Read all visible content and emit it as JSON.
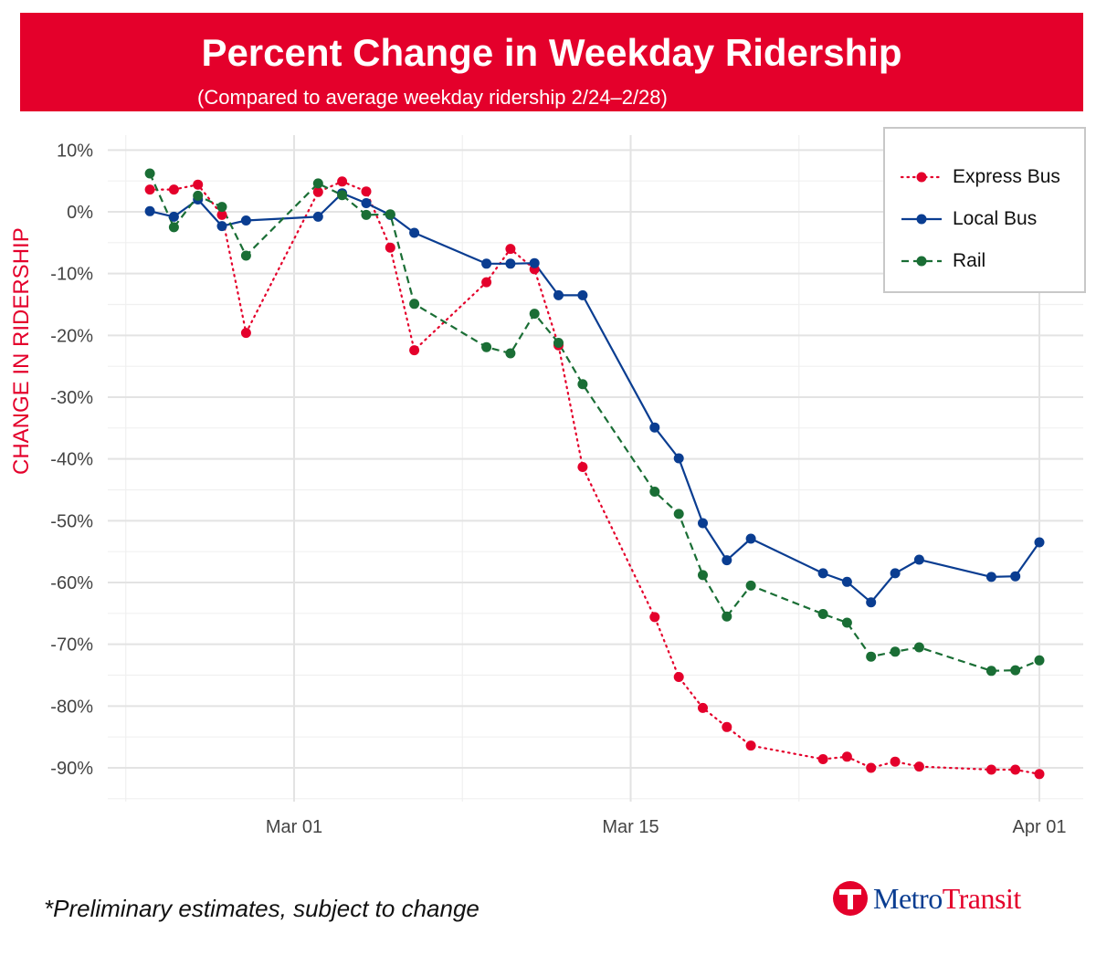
{
  "header": {
    "title": "Percent Change in Weekday Ridership",
    "subtitle": "(Compared to average weekday ridership 2/24–2/28)"
  },
  "footnote": "*Preliminary estimates, subject to change",
  "logo": {
    "part1": "Metro",
    "part2": "Transit",
    "icon": "metro-transit-t-icon"
  },
  "colors": {
    "banner": "#e4002b",
    "express": "#e4002b",
    "local": "#0a3d91",
    "rail": "#1a6e35"
  },
  "chart_data": {
    "type": "line",
    "ylabel": "CHANGE IN RIDERSHIP",
    "ylim": [
      -95,
      10
    ],
    "y_ticks": [
      10,
      0,
      -10,
      -20,
      -30,
      -40,
      -50,
      -60,
      -70,
      -80,
      -90
    ],
    "y_tick_labels": [
      "10%",
      "0%",
      "-10%",
      "-20%",
      "-30%",
      "-40%",
      "-50%",
      "-60%",
      "-70%",
      "-80%",
      "-90%"
    ],
    "x_range": [
      "2020-02-22",
      "2020-04-02"
    ],
    "x_ticks": [
      "2020-03-01",
      "2020-03-15",
      "2020-04-01"
    ],
    "x_tick_labels": [
      "Mar 01",
      "Mar 15",
      "Apr 01"
    ],
    "grid": true,
    "legend_position": "top-right",
    "series": [
      {
        "name": "Express Bus",
        "style": "dotted",
        "x": [
          "2020-02-24",
          "2020-02-25",
          "2020-02-26",
          "2020-02-27",
          "2020-02-28",
          "2020-03-02",
          "2020-03-03",
          "2020-03-04",
          "2020-03-05",
          "2020-03-06",
          "2020-03-09",
          "2020-03-10",
          "2020-03-11",
          "2020-03-12",
          "2020-03-13",
          "2020-03-16",
          "2020-03-17",
          "2020-03-18",
          "2020-03-19",
          "2020-03-20",
          "2020-03-23",
          "2020-03-24",
          "2020-03-25",
          "2020-03-26",
          "2020-03-27",
          "2020-03-30",
          "2020-03-31",
          "2020-04-01"
        ],
        "y": [
          3.6,
          3.6,
          4.4,
          -0.5,
          -19.6,
          3.2,
          4.9,
          3.3,
          -5.8,
          -22.4,
          -11.4,
          -6.0,
          -9.3,
          -21.6,
          -41.3,
          -65.6,
          -75.3,
          -80.3,
          -83.4,
          -86.4,
          -88.6,
          -88.2,
          -90.0,
          -89.0,
          -89.8,
          -90.3,
          -90.3,
          -91.0
        ]
      },
      {
        "name": "Local Bus",
        "style": "solid",
        "x": [
          "2020-02-24",
          "2020-02-25",
          "2020-02-26",
          "2020-02-27",
          "2020-02-28",
          "2020-03-02",
          "2020-03-03",
          "2020-03-04",
          "2020-03-05",
          "2020-03-06",
          "2020-03-09",
          "2020-03-10",
          "2020-03-11",
          "2020-03-12",
          "2020-03-13",
          "2020-03-16",
          "2020-03-17",
          "2020-03-18",
          "2020-03-19",
          "2020-03-20",
          "2020-03-23",
          "2020-03-24",
          "2020-03-25",
          "2020-03-26",
          "2020-03-27",
          "2020-03-30",
          "2020-03-31",
          "2020-04-01"
        ],
        "y": [
          0.1,
          -0.8,
          2.0,
          -2.3,
          -1.4,
          -0.8,
          3.0,
          1.4,
          -0.5,
          -3.4,
          -8.4,
          -8.4,
          -8.3,
          -13.5,
          -13.5,
          -34.9,
          -39.9,
          -50.4,
          -56.4,
          -52.9,
          -58.5,
          -59.9,
          -63.2,
          -58.5,
          -56.3,
          -59.1,
          -59.0,
          -53.5
        ]
      },
      {
        "name": "Rail",
        "style": "dashed",
        "x": [
          "2020-02-24",
          "2020-02-25",
          "2020-02-26",
          "2020-02-27",
          "2020-02-28",
          "2020-03-02",
          "2020-03-03",
          "2020-03-04",
          "2020-03-05",
          "2020-03-06",
          "2020-03-09",
          "2020-03-10",
          "2020-03-11",
          "2020-03-12",
          "2020-03-13",
          "2020-03-16",
          "2020-03-17",
          "2020-03-18",
          "2020-03-19",
          "2020-03-20",
          "2020-03-23",
          "2020-03-24",
          "2020-03-25",
          "2020-03-26",
          "2020-03-27",
          "2020-03-30",
          "2020-03-31",
          "2020-04-01"
        ],
        "y": [
          6.2,
          -2.5,
          2.6,
          0.8,
          -7.1,
          4.6,
          2.7,
          -0.5,
          -0.4,
          -14.9,
          -21.9,
          -22.9,
          -16.5,
          -21.2,
          -27.9,
          -45.3,
          -48.9,
          -58.8,
          -65.5,
          -60.5,
          -65.1,
          -66.5,
          -72.0,
          -71.2,
          -70.5,
          -74.3,
          -74.2,
          -72.6
        ]
      }
    ]
  }
}
